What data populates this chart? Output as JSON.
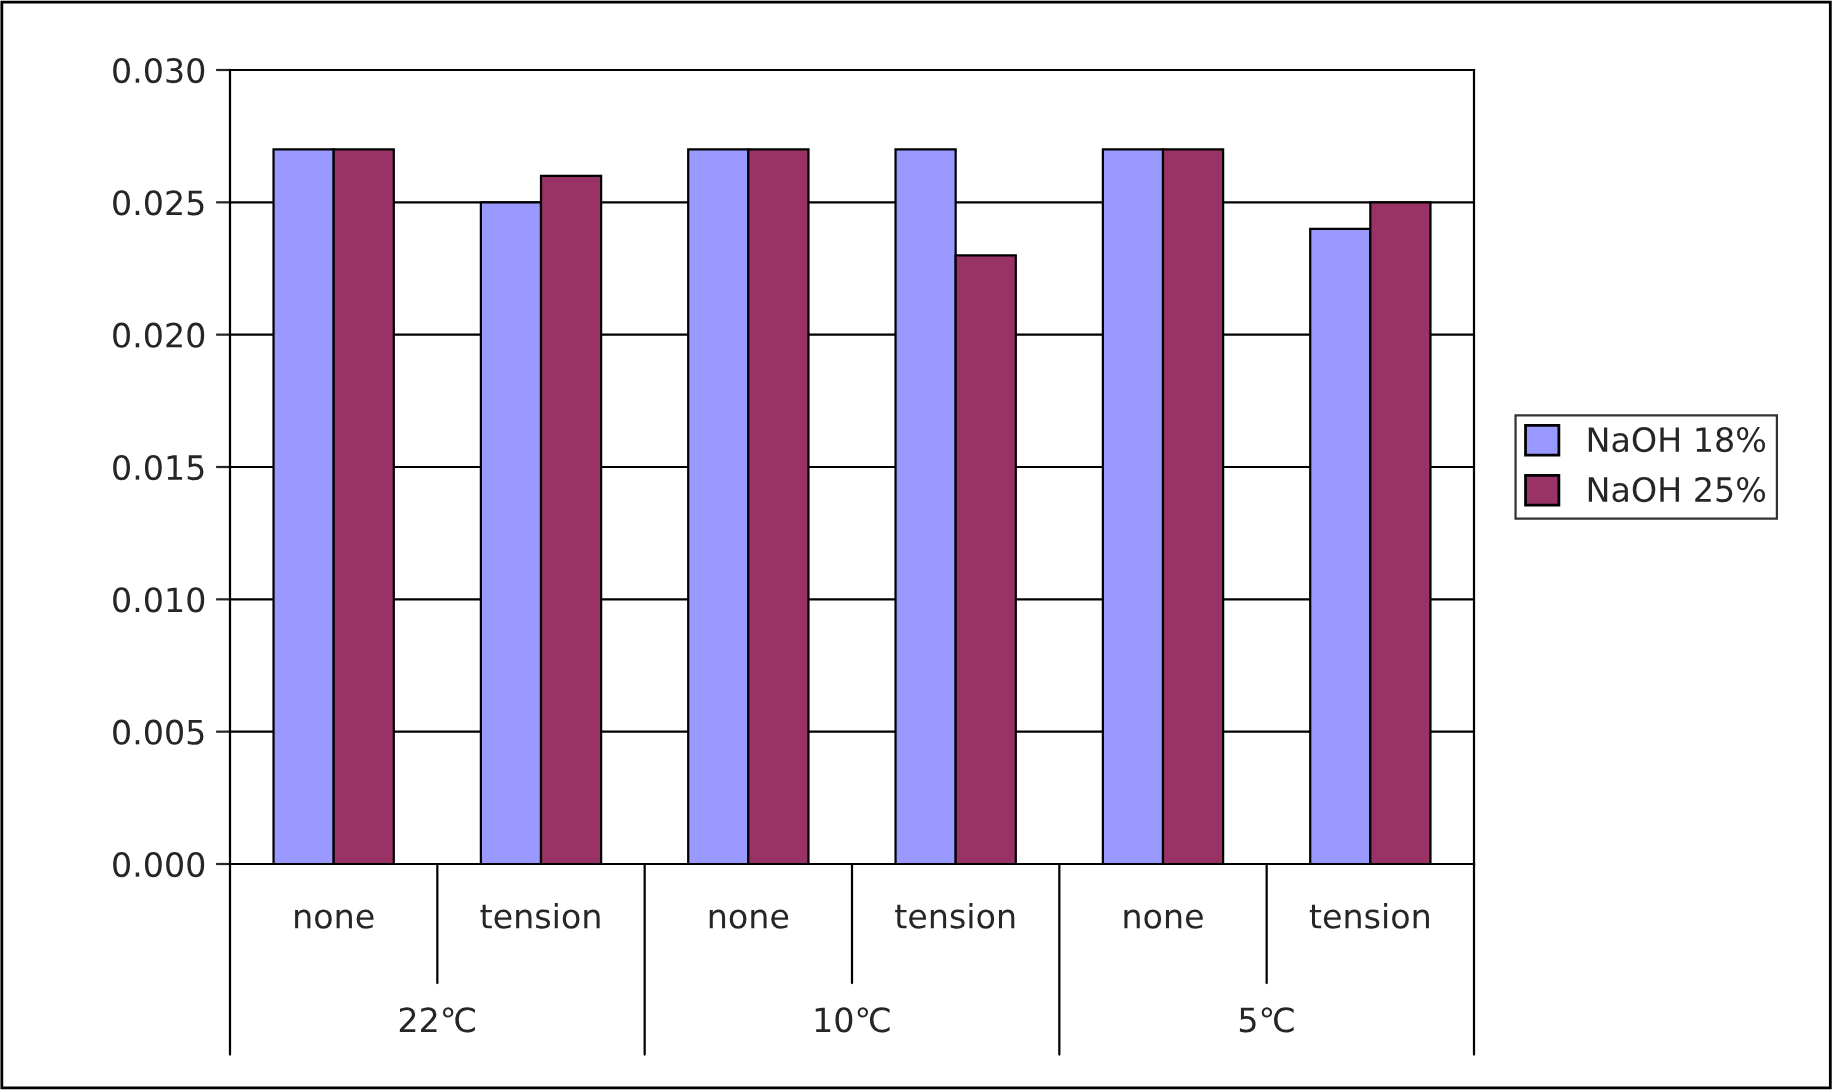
{
  "chart_data": {
    "type": "bar",
    "categories": [
      "none",
      "tension",
      "none",
      "tension",
      "none",
      "tension"
    ],
    "series": [
      {
        "name": "NaOH 18%",
        "color": "#9999ff",
        "values": [
          0.027,
          0.025,
          0.027,
          0.027,
          0.027,
          0.024
        ]
      },
      {
        "name": "NaOH 25%",
        "color": "#993366",
        "values": [
          0.027,
          0.026,
          0.027,
          0.023,
          0.027,
          0.025
        ]
      }
    ],
    "annotations": [
      "22℃",
      "10℃",
      "5℃"
    ],
    "ylim": [
      0,
      0.03
    ],
    "yticks": [
      {
        "value": 0,
        "label": "0.000"
      },
      {
        "value": 0.005,
        "label": "0.005"
      },
      {
        "value": 0.01,
        "label": "0.010"
      },
      {
        "value": 0.015,
        "label": "0.015"
      },
      {
        "value": 0.02,
        "label": "0.020"
      },
      {
        "value": 0.025,
        "label": "0.025"
      },
      {
        "value": 0.03,
        "label": "0.030"
      }
    ],
    "grid": "y",
    "legend": "right"
  }
}
